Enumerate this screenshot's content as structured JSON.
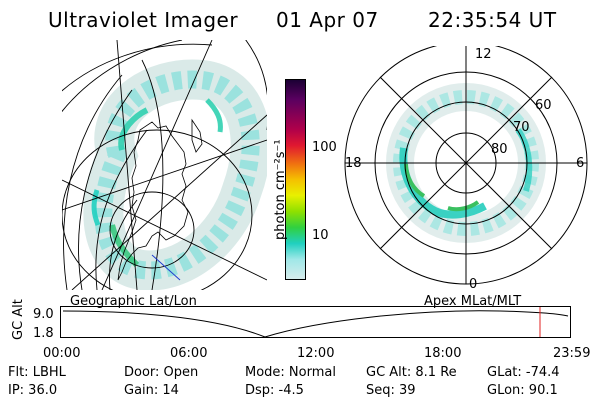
{
  "header": {
    "instrument": "Ultraviolet Imager",
    "date": "01 Apr 07",
    "time": "22:35:54 UT"
  },
  "colorbar": {
    "label": "photon cm⁻²s⁻¹",
    "ticks": [
      "100",
      "10"
    ],
    "colors": [
      "#1a0033",
      "#5a0060",
      "#b0004a",
      "#e01830",
      "#f07010",
      "#f5c000",
      "#e8f000",
      "#8fe000",
      "#30d040",
      "#20d0c0",
      "#a0e8e8",
      "#d8ecec"
    ]
  },
  "polar_plot": {
    "mlt_labels": [
      "12",
      "18",
      "6",
      "0"
    ],
    "lat_labels": [
      "60",
      "70",
      "80"
    ]
  },
  "map_labels": {
    "left": "Geographic Lat/Lon",
    "right": "Apex MLat/MLT"
  },
  "altitude_plot": {
    "ylabel": "GC Alt",
    "yticks": [
      "9.0",
      "1.8"
    ],
    "xticks": [
      "00:00",
      "06:00",
      "12:00",
      "18:00",
      "23:59"
    ]
  },
  "info": {
    "filter": "Flt: LBHL",
    "ip": "IP: 36.0",
    "door": "Door: Open",
    "gain": "Gain: 14",
    "mode": "Mode: Normal",
    "dsp": "Dsp:    -4.5",
    "gc_alt": "GC Alt: 8.1 Re",
    "seq": "Seq: 39",
    "glat": "GLat:  -74.4",
    "glon": "GLon:  90.1"
  }
}
